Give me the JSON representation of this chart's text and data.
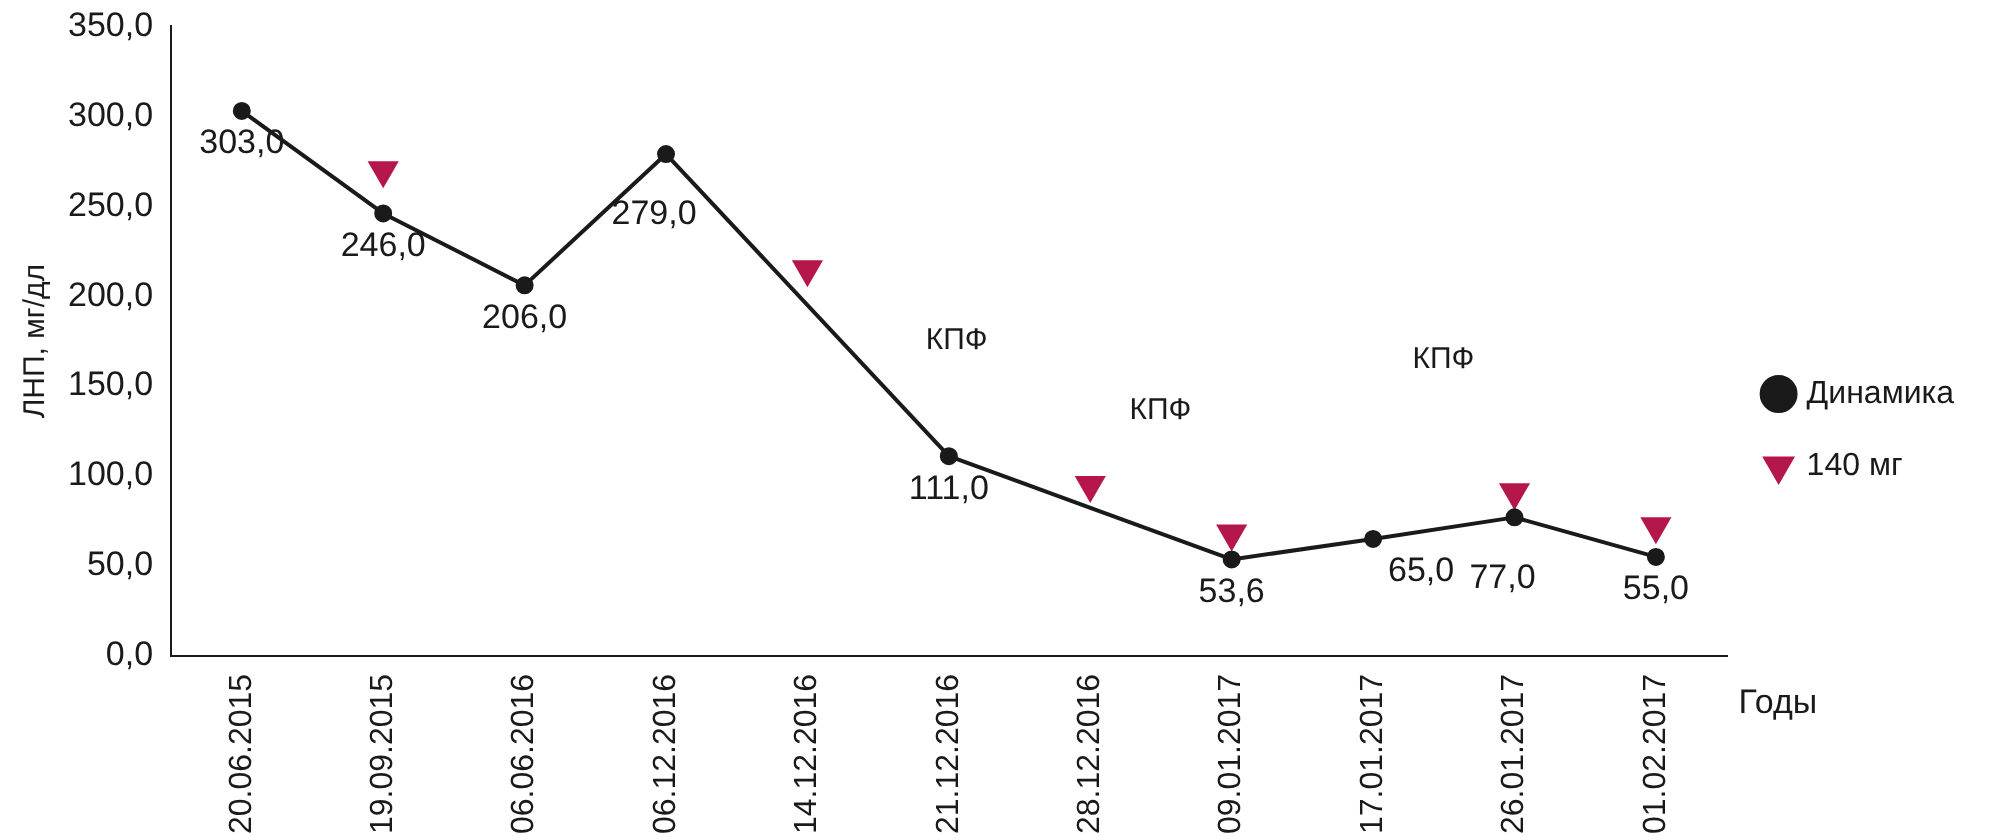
{
  "chart_data": {
    "type": "line",
    "xlabel": "Годы",
    "ylabel": "ЛНП, мг/дл",
    "categories": [
      "20.06.2015",
      "19.09.2015",
      "06.06.2016",
      "06.12.2016",
      "14.12.2016",
      "21.12.2016",
      "28.12.2016",
      "09.01.2017",
      "17.01.2017",
      "26.01.2017",
      "01.02.2017"
    ],
    "series": [
      {
        "name": "Динамика",
        "color": "#1a1a1a",
        "marker": "circle",
        "values": [
          303.0,
          246.0,
          206.0,
          279.0,
          null,
          111.0,
          null,
          53.6,
          65.0,
          77.0,
          55.0
        ],
        "value_labels": [
          "303,0",
          "246,0",
          "206,0",
          "279,0",
          null,
          "111,0",
          null,
          "53,6",
          "65,0",
          "77,0",
          "55,0"
        ]
      },
      {
        "name": "140 мг",
        "color": "#b5174b",
        "type": "scatter",
        "marker": "triangle",
        "values": [
          null,
          270,
          null,
          null,
          215,
          null,
          95,
          68,
          null,
          91,
          72
        ]
      }
    ],
    "annotations": [
      "КПФ",
      "КПФ",
      "КПФ"
    ],
    "ylim": [
      0,
      350
    ],
    "yticks": [
      {
        "value": 0,
        "label": "0,0"
      },
      {
        "value": 50,
        "label": "50,0"
      },
      {
        "value": 100,
        "label": "100,0"
      },
      {
        "value": 150,
        "label": "150,0"
      },
      {
        "value": 200,
        "label": "200,0"
      },
      {
        "value": 250,
        "label": "250,0"
      },
      {
        "value": 300,
        "label": "300,0"
      },
      {
        "value": 350,
        "label": "350,0"
      }
    ],
    "grid": false,
    "legend": "right"
  }
}
